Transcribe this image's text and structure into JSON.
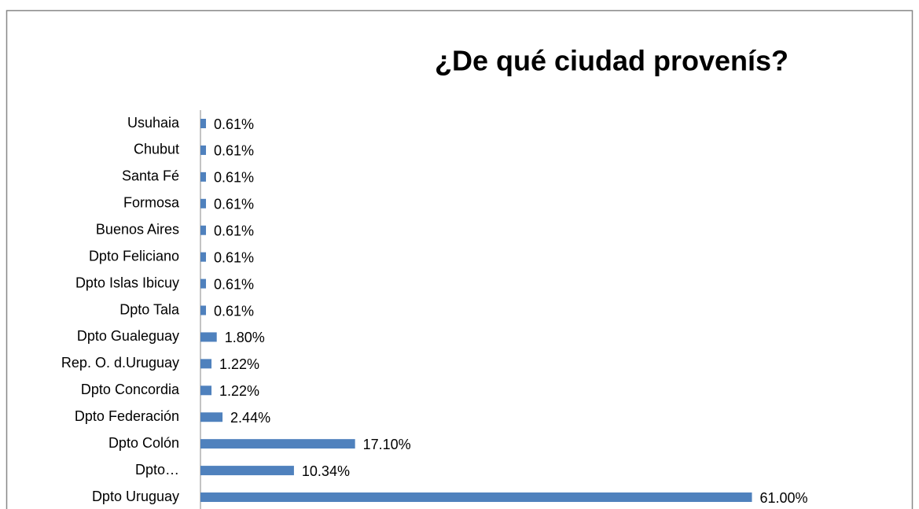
{
  "chart_data": {
    "type": "bar",
    "orientation": "horizontal",
    "title": "¿De qué ciudad provenís?",
    "categories": [
      "Usuhaia",
      "Chubut",
      "Santa Fé",
      "Formosa",
      "Buenos Aires",
      "Dpto Feliciano",
      "Dpto Islas Ibicuy",
      "Dpto Tala",
      "Dpto Gualeguay",
      "Rep. O. d.Uruguay",
      "Dpto Concordia",
      "Dpto Federación",
      "Dpto Colón",
      "Dpto…",
      "Dpto Uruguay"
    ],
    "values": [
      0.61,
      0.61,
      0.61,
      0.61,
      0.61,
      0.61,
      0.61,
      0.61,
      1.8,
      1.22,
      1.22,
      2.44,
      17.1,
      10.34,
      61.0
    ],
    "value_labels": [
      "0.61%",
      "0.61%",
      "0.61%",
      "0.61%",
      "0.61%",
      "0.61%",
      "0.61%",
      "0.61%",
      "1.80%",
      "1.22%",
      "1.22%",
      "2.44%",
      "17.10%",
      "10.34%",
      "61.00%"
    ],
    "color": "#4f81bd"
  }
}
